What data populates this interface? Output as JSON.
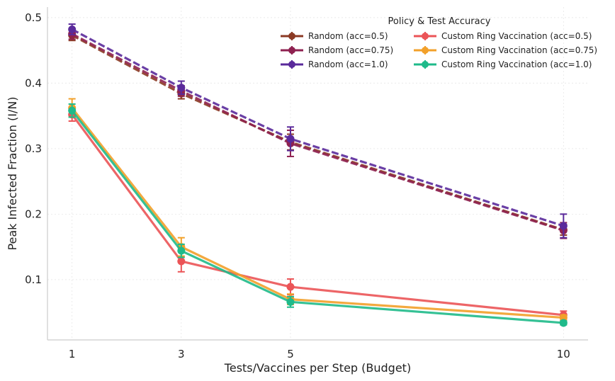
{
  "chart_data": {
    "type": "line",
    "title": "",
    "xlabel": "Tests/Vaccines per Step (Budget)",
    "ylabel": "Peak Infected Fraction (I/N)",
    "x": [
      1,
      3,
      5,
      10
    ],
    "xticks": [
      "1",
      "3",
      "5",
      "10"
    ],
    "yticks": [
      "0.1",
      "0.2",
      "0.3",
      "0.4",
      "0.5"
    ],
    "xlim": [
      0.55,
      10.45
    ],
    "ylim": [
      0.008,
      0.516
    ],
    "grid": true,
    "legend": {
      "title": "Policy & Test Accuracy",
      "placement": "top-right",
      "columns": 2
    },
    "series": [
      {
        "name": "Random (acc=0.5)",
        "color": "#8B3A24",
        "dash": true,
        "values": [
          0.473,
          0.384,
          0.31,
          0.176
        ],
        "errors": [
          0.008,
          0.008,
          0.012,
          0.008
        ]
      },
      {
        "name": "Random (acc=0.75)",
        "color": "#8E2150",
        "dash": true,
        "values": [
          0.475,
          0.388,
          0.308,
          0.175
        ],
        "errors": [
          0.008,
          0.008,
          0.02,
          0.012
        ]
      },
      {
        "name": "Random (acc=1.0)",
        "color": "#5A2A9B",
        "dash": true,
        "values": [
          0.482,
          0.393,
          0.315,
          0.182
        ],
        "errors": [
          0.008,
          0.01,
          0.018,
          0.018
        ]
      },
      {
        "name": "Custom Ring Vaccination (acc=0.5)",
        "color": "#EB5457",
        "dash": false,
        "values": [
          0.352,
          0.128,
          0.089,
          0.046
        ],
        "errors": [
          0.01,
          0.016,
          0.012,
          0.006
        ]
      },
      {
        "name": "Custom Ring Vaccination (acc=0.75)",
        "color": "#F2A02A",
        "dash": false,
        "values": [
          0.362,
          0.15,
          0.07,
          0.042
        ],
        "errors": [
          0.014,
          0.014,
          0.008,
          0.004
        ]
      },
      {
        "name": "Custom Ring Vaccination (acc=1.0)",
        "color": "#1FBA8A",
        "dash": false,
        "values": [
          0.358,
          0.144,
          0.066,
          0.034
        ],
        "errors": [
          0.01,
          0.01,
          0.008,
          0.003
        ]
      }
    ]
  }
}
